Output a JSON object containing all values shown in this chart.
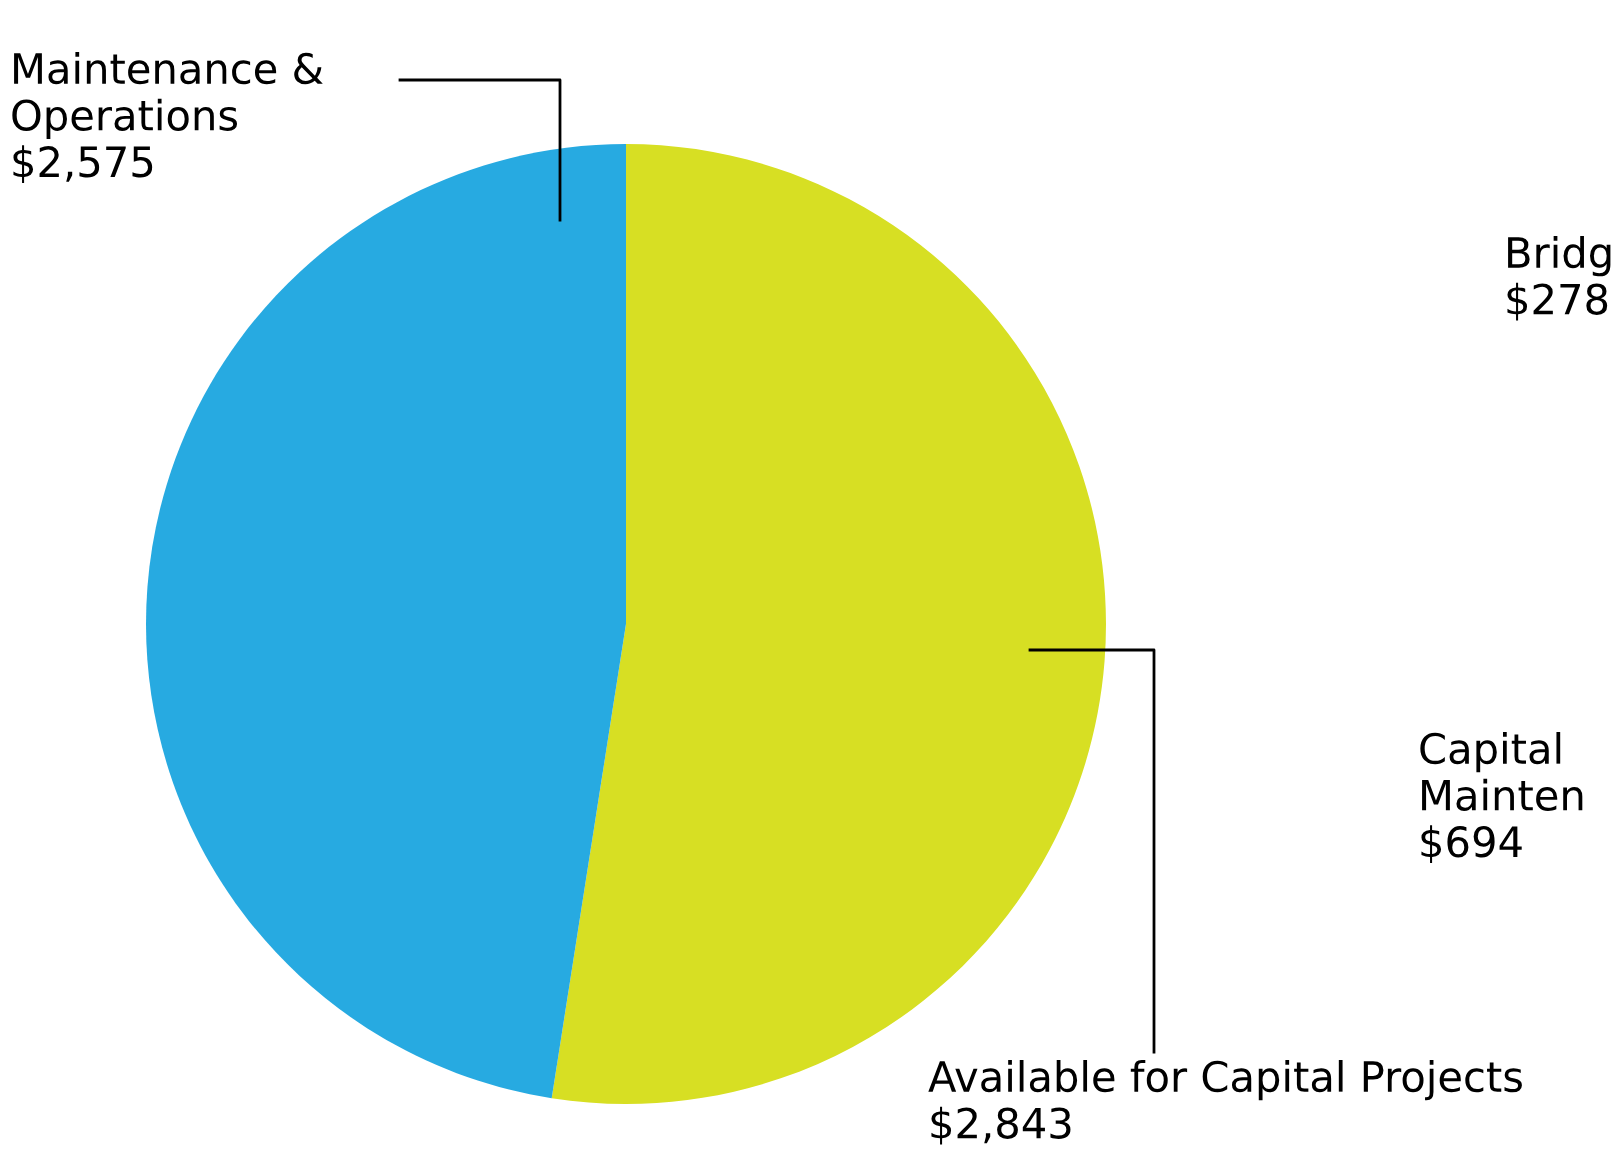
{
  "chart_data": {
    "type": "pie",
    "categories": [
      "Available for Capital Projects",
      "Maintenance &\nOperations"
    ],
    "values": [
      2843,
      2575
    ],
    "value_labels": [
      "$2,843",
      "$2,575"
    ],
    "colors": [
      "#d7df23",
      "#27aae1"
    ],
    "annotations": [
      "Bridg\n$278",
      "Capital\nMainten\n$694"
    ]
  }
}
